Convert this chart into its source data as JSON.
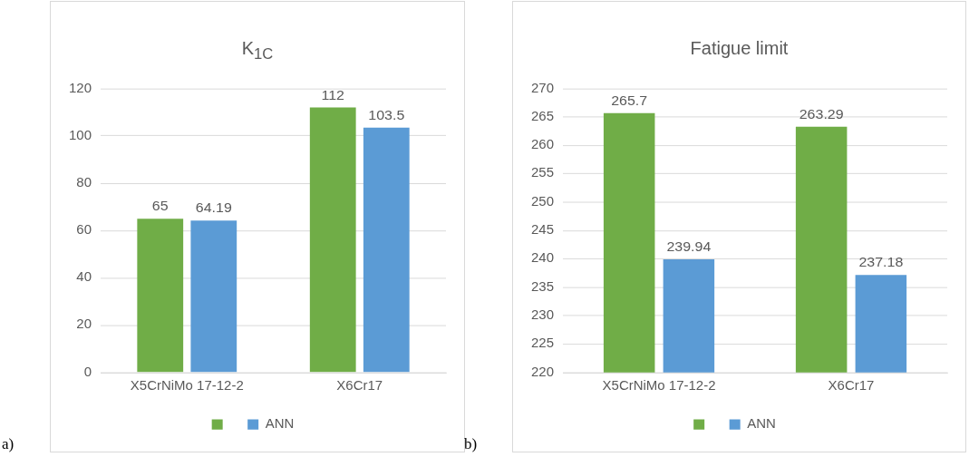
{
  "chart_data": [
    {
      "type": "bar",
      "title": "K$_{1C}$",
      "categories": [
        "X5CrNiMo 17-12-2",
        "X6Cr17"
      ],
      "series": [
        {
          "color": "#70ad47",
          "values": [
            65,
            112
          ]
        },
        {
          "name": "ANN",
          "color": "#5b9bd5",
          "values": [
            64.19,
            103.5
          ]
        }
      ],
      "ylim": [
        0,
        120
      ],
      "yticks": [
        0,
        20,
        40,
        60,
        80,
        100,
        120
      ],
      "grid": "y",
      "legend": "bottom",
      "data_labels": true,
      "annotations": [
        "a)"
      ]
    },
    {
      "type": "bar",
      "title": "Fatigue limit",
      "categories": [
        "X5CrNiMo 17-12-2",
        "X6Cr17"
      ],
      "series": [
        {
          "color": "#70ad47",
          "values": [
            265.7,
            263.29
          ]
        },
        {
          "name": "ANN",
          "color": "#5b9bd5",
          "values": [
            239.94,
            237.18
          ]
        }
      ],
      "ylim": [
        220,
        270
      ],
      "yticks": [
        220,
        225,
        230,
        235,
        240,
        245,
        250,
        255,
        260,
        265,
        270
      ],
      "grid": "y",
      "legend": "bottom",
      "data_labels": true,
      "annotations": [
        "b)"
      ]
    }
  ]
}
